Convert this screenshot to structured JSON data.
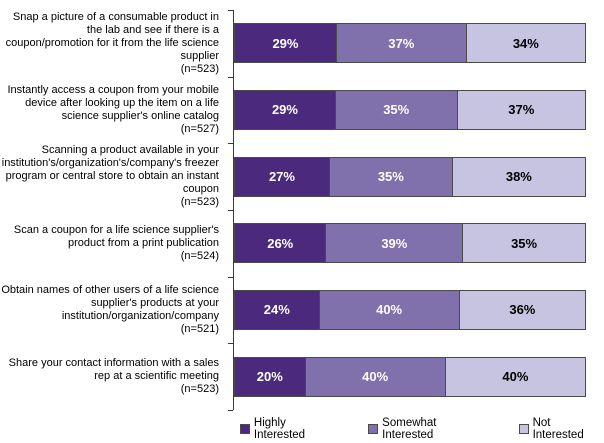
{
  "chart_data": {
    "type": "bar",
    "orientation": "horizontal-stacked",
    "title": "",
    "xlabel": "",
    "ylabel": "",
    "xlim": [
      0,
      100
    ],
    "value_suffix": "%",
    "grid": false,
    "legend_position": "bottom",
    "axis_color": "#3a3a3a",
    "segment_border_color": "#4a4a4a",
    "categories": [
      {
        "label": "Snap a picture of a consumable product in the lab and see if there is a coupon/promotion for it from the life science supplier",
        "n": "(n=523)"
      },
      {
        "label": "Instantly access a coupon from your mobile device after looking up the item on a life science supplier's online catalog",
        "n": "(n=527)"
      },
      {
        "label": "Scanning a product available in your institution's/organization's/company's freezer program or central store to obtain an instant coupon",
        "n": "(n=523)"
      },
      {
        "label": "Scan a coupon for a life science supplier's product from a print publication",
        "n": "(n=524)"
      },
      {
        "label": "Obtain names of other users of a life science supplier's products at your institution/organization/company",
        "n": "(n=521)"
      },
      {
        "label": "Share your contact information with a sales rep at a scientific meeting",
        "n": "(n=523)"
      }
    ],
    "series": [
      {
        "name": "Highly Interested",
        "color": "#4b2a7d",
        "text_color": "#ffffff",
        "values": [
          29,
          29,
          27,
          26,
          24,
          20
        ]
      },
      {
        "name": "Somewhat Interested",
        "color": "#8070ab",
        "text_color": "#ffffff",
        "values": [
          37,
          35,
          35,
          39,
          40,
          40
        ]
      },
      {
        "name": "Not Interested",
        "color": "#c6c4e0",
        "text_color": "#000000",
        "values": [
          34,
          37,
          38,
          35,
          36,
          40
        ]
      }
    ]
  }
}
